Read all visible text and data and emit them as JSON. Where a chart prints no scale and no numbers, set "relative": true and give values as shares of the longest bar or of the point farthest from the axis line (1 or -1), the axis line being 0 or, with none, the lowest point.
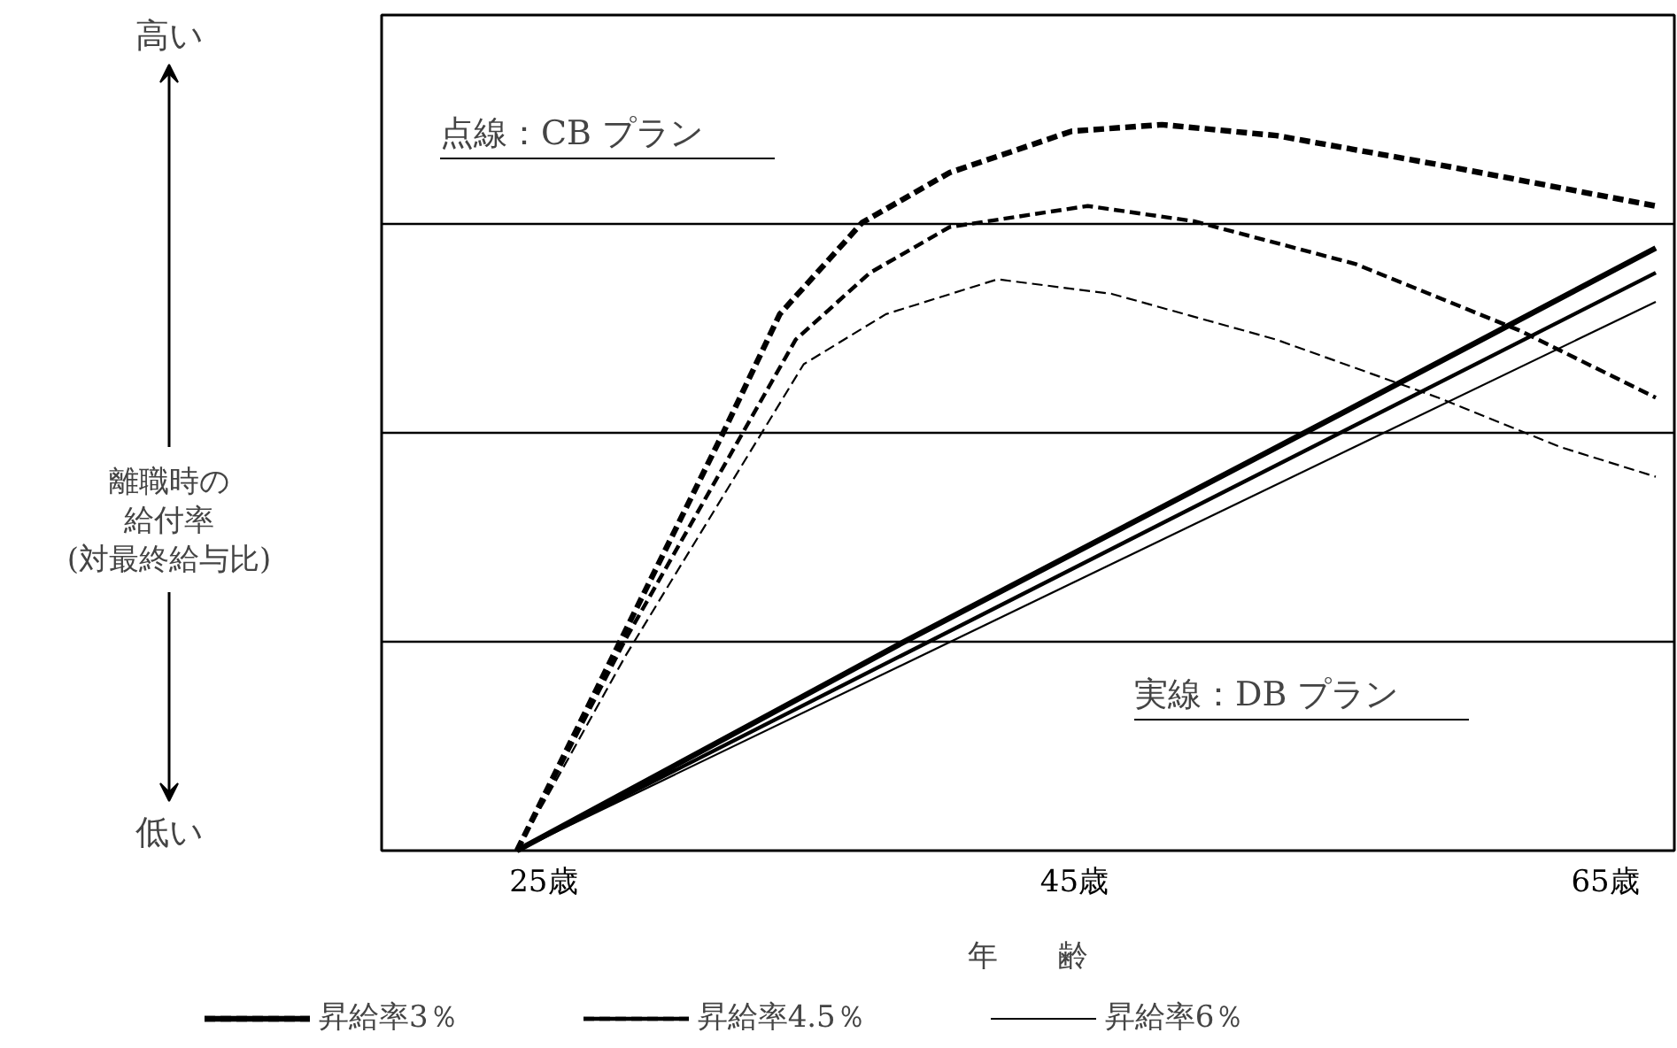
{
  "chart_data": {
    "type": "line",
    "relative": true,
    "xlabel": "年　　齢",
    "ylabel": "離職時の給付率(対最終給与比)",
    "xlim": [
      18.9,
      67.6
    ],
    "xticks": [
      {
        "value": 25,
        "label": "25歳"
      },
      {
        "value": 45,
        "label": "45歳"
      },
      {
        "value": 65,
        "label": "65歳"
      }
    ],
    "annotations": [
      "高い",
      "低い",
      "点線：CB プラン",
      "実線：DB プラン"
    ],
    "grid": "y",
    "legend": "bottom",
    "series": [
      {
        "name": "昇給率3％",
        "color": "#000000",
        "line_style": "solid",
        "x": [
          24.0,
          38.5,
          53.8,
          66.9
        ],
        "values": [
          0,
          0.286,
          0.578,
          0.83
        ]
      },
      {
        "name": "昇給率4.5％",
        "color": "#000000",
        "line_style": "solid",
        "x": [
          24.0,
          66.9
        ],
        "values": [
          0,
          0.796
        ]
      },
      {
        "name": "昇給率6％",
        "color": "#000000",
        "line_style": "solid",
        "x": [
          24.0,
          66.9
        ],
        "values": [
          0,
          0.756
        ]
      },
      {
        "color": "#000000",
        "line_style": "dashed",
        "x": [
          24.0,
          28.1,
          31.8,
          33.9,
          37.0,
          40.3,
          44.9,
          48.3,
          52.6,
          58.7,
          66.9
        ],
        "values": [
          0,
          0.304,
          0.578,
          0.739,
          0.865,
          0.934,
          0.991,
          1,
          0.985,
          0.945,
          0.888
        ]
      },
      {
        "color": "#000000",
        "line_style": "dashed",
        "x": [
          24.0,
          28.1,
          34.5,
          37.3,
          40.3,
          45.5,
          49.5,
          55.6,
          61.8,
          66.9
        ],
        "values": [
          0,
          0.292,
          0.704,
          0.796,
          0.859,
          0.888,
          0.867,
          0.808,
          0.716,
          0.624
        ]
      },
      {
        "color": "#000000",
        "line_style": "dashed",
        "x": [
          24.0,
          28.1,
          34.8,
          37.9,
          42.1,
          46.4,
          52.6,
          58.7,
          63.3,
          66.9
        ],
        "values": [
          0,
          0.269,
          0.67,
          0.739,
          0.787,
          0.767,
          0.704,
          0.624,
          0.556,
          0.515
        ]
      }
    ]
  }
}
